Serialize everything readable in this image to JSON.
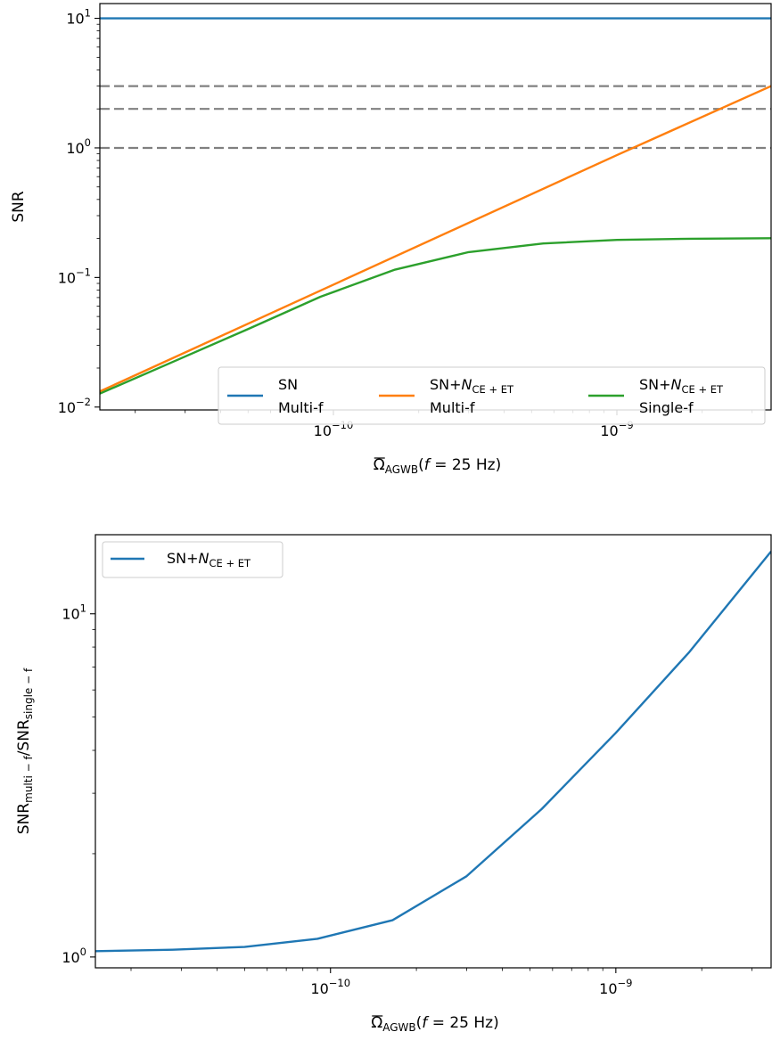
{
  "colors": {
    "blue": "#1f77b4",
    "orange": "#ff7f0e",
    "green": "#2ca02c",
    "threshold": "#808080"
  },
  "chart_data": [
    {
      "type": "line",
      "xscale": "log",
      "yscale": "log",
      "xlim": [
        1.5e-11,
        3.5e-09
      ],
      "ylim": [
        0.0095,
        13
      ],
      "xlabel": {
        "over": "Ω",
        "sub": "AGWB",
        "rest_before_f": "(",
        "f": "f",
        "rest_after_f": " = 25 Hz)"
      },
      "ylabel": "SNR",
      "xticks": [
        {
          "value": 1e-10,
          "base": "10",
          "exp": "−10"
        },
        {
          "value": 1e-09,
          "base": "10",
          "exp": "−9"
        }
      ],
      "yticks": [
        {
          "value": 0.01,
          "base": "10",
          "exp": "−2"
        },
        {
          "value": 0.1,
          "base": "10",
          "exp": "−1"
        },
        {
          "value": 1,
          "base": "10",
          "exp": "0"
        },
        {
          "value": 10,
          "base": "10",
          "exp": "1"
        }
      ],
      "hlines": [
        1,
        2,
        3
      ],
      "legend": {
        "placement": "lower-right",
        "ncol": 3
      },
      "series": [
        {
          "name": "SN",
          "name_line2": "Multi-f",
          "color": "blue",
          "x": [
            1.5e-11,
            3.5e-09
          ],
          "y": [
            10,
            10
          ]
        },
        {
          "name": "SN+",
          "name_italic": "N",
          "name_sub": "CE + ET",
          "name_line2": "Multi-f",
          "color": "orange",
          "x": [
            1.5e-11,
            1e-10,
            1e-09,
            3.5e-09
          ],
          "y": [
            0.0132,
            0.088,
            0.88,
            3.0
          ]
        },
        {
          "name": "SN+",
          "name_italic": "N",
          "name_sub": "CE + ET",
          "name_line2": "Single-f",
          "color": "green",
          "x": [
            1.5e-11,
            2.8e-11,
            5e-11,
            9e-11,
            1.65e-10,
            3e-10,
            5.5e-10,
            1e-09,
            1.8e-09,
            3.5e-09
          ],
          "y": [
            0.0127,
            0.023,
            0.04,
            0.071,
            0.115,
            0.157,
            0.183,
            0.195,
            0.199,
            0.201
          ]
        }
      ]
    },
    {
      "type": "line",
      "xscale": "log",
      "yscale": "log",
      "xlim": [
        1.5e-11,
        3.5e-09
      ],
      "ylim": [
        0.93,
        17
      ],
      "xlabel": {
        "over": "Ω",
        "sub": "AGWB",
        "rest_before_f": "(",
        "f": "f",
        "rest_after_f": " = 25 Hz)"
      },
      "ylabel": {
        "a": "SNR",
        "a_sub": "multi − f",
        "slash": "/SNR",
        "b_sub": "single − f"
      },
      "xticks": [
        {
          "value": 1e-10,
          "base": "10",
          "exp": "−10"
        },
        {
          "value": 1e-09,
          "base": "10",
          "exp": "−9"
        }
      ],
      "yticks": [
        {
          "value": 1,
          "base": "10",
          "exp": "0"
        },
        {
          "value": 10,
          "base": "10",
          "exp": "1"
        }
      ],
      "legend": {
        "placement": "upper-left"
      },
      "series": [
        {
          "name": "SN+",
          "name_italic": "N",
          "name_sub": "CE + ET",
          "color": "blue",
          "x": [
            1.5e-11,
            2.8e-11,
            5e-11,
            9e-11,
            1.65e-10,
            3e-10,
            5.5e-10,
            1e-09,
            1.8e-09,
            3.5e-09
          ],
          "y": [
            1.04,
            1.05,
            1.07,
            1.13,
            1.28,
            1.72,
            2.7,
            4.5,
            7.7,
            15.2
          ]
        }
      ]
    }
  ]
}
